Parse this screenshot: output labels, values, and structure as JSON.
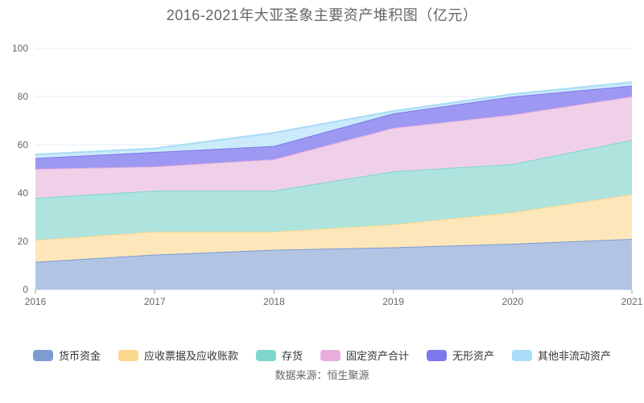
{
  "header": {
    "title": "2016-2021年大亚圣象主要资产堆积图（亿元）"
  },
  "footer": {
    "source": "数据来源：恒生聚源"
  },
  "chart_data": {
    "type": "area",
    "stacked": true,
    "title": "2016-2021年大亚圣象主要资产堆积图（亿元）",
    "x": [
      2016,
      2017,
      2018,
      2019,
      2020,
      2021
    ],
    "x_labels": [
      "2016",
      "2017",
      "2018",
      "2019",
      "2020",
      "2021"
    ],
    "ylim": [
      0,
      100
    ],
    "yticks": [
      0,
      20,
      40,
      60,
      80,
      100
    ],
    "grid": true,
    "legend_position": "bottom",
    "unit": "亿元",
    "series": [
      {
        "name": "货币资金",
        "color": "#7e9bd2",
        "fill": "#b1c4e4",
        "values": [
          11.5,
          14.5,
          16.5,
          17.5,
          19.0,
          21.0
        ]
      },
      {
        "name": "应收票据及应收账款",
        "color": "#fbd78e",
        "fill": "#fde7ba",
        "values": [
          9.0,
          9.5,
          7.5,
          9.5,
          13.0,
          18.5
        ]
      },
      {
        "name": "存货",
        "color": "#7fd6cd",
        "fill": "#aee3de",
        "values": [
          17.5,
          17.0,
          17.0,
          22.0,
          20.0,
          22.5
        ]
      },
      {
        "name": "固定资产合计",
        "color": "#e9aedd",
        "fill": "#f0d0e9",
        "values": [
          12.0,
          10.0,
          13.0,
          18.0,
          20.5,
          18.0
        ]
      },
      {
        "name": "无形资产",
        "color": "#7e79ee",
        "fill": "#9d98f1",
        "values": [
          4.5,
          6.0,
          5.5,
          6.0,
          7.5,
          4.5
        ]
      },
      {
        "name": "其他非流动资产",
        "color": "#a8dcf7",
        "fill": "#cbeafa",
        "values": [
          1.5,
          1.5,
          5.5,
          1.0,
          1.0,
          1.5
        ]
      }
    ],
    "style": {
      "grid_color": "#e6ebf4",
      "axis_line_color": "#ccd3dd",
      "tick_color": "#999999",
      "axis_label_color": "#666666"
    }
  }
}
